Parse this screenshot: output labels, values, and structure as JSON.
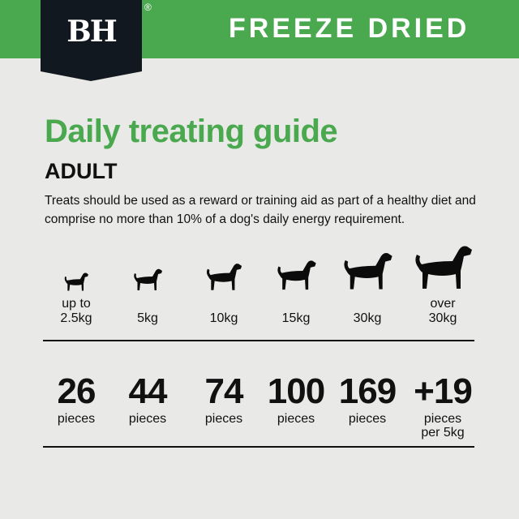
{
  "header": {
    "logo": "BH",
    "registered": "®",
    "category": "FREEZE DRIED",
    "brand_color": "#4aa84e",
    "logo_bg": "#121820"
  },
  "title": "Daily treating guide",
  "subtitle": "ADULT",
  "description": "Treats should be used as a reward or training aid as part of a healthy diet and comprise no more than 10% of a dog's daily energy requirement.",
  "columns": [
    {
      "icon": "small-dog-icon",
      "weight": [
        "up to",
        "2.5kg"
      ],
      "count": "26",
      "unit": [
        "pieces"
      ]
    },
    {
      "icon": "dachshund-icon",
      "weight": [
        "",
        "5kg"
      ],
      "count": "44",
      "unit": [
        "pieces"
      ]
    },
    {
      "icon": "bulldog-icon",
      "weight": [
        "",
        "10kg"
      ],
      "count": "74",
      "unit": [
        "pieces"
      ]
    },
    {
      "icon": "terrier-icon",
      "weight": [
        "",
        "15kg"
      ],
      "count": "100",
      "unit": [
        "pieces"
      ]
    },
    {
      "icon": "great-dane-icon",
      "weight": [
        "",
        "30kg"
      ],
      "count": "169",
      "unit": [
        "pieces"
      ]
    },
    {
      "icon": "mastiff-icon",
      "weight": [
        "over",
        "30kg"
      ],
      "count": "+19",
      "unit": [
        "pieces",
        "per 5kg"
      ]
    }
  ]
}
